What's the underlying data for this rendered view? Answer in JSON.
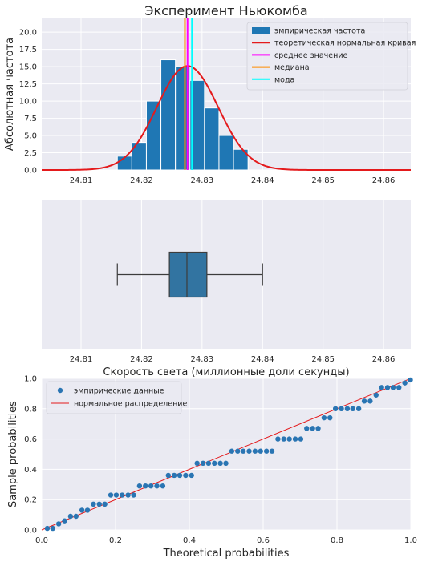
{
  "figure": {
    "title": "Эксперимент Ньюкомба"
  },
  "chart_data": [
    {
      "type": "bar",
      "subtype": "histogram",
      "title": "Эксперимент Ньюкомба",
      "ylabel": "Абсолютная частота",
      "xlabel": "",
      "xlim": [
        24.8035,
        24.8645
      ],
      "ylim": [
        0,
        22
      ],
      "xticks": [
        "24.81",
        "24.82",
        "24.83",
        "24.84",
        "24.85",
        "24.86"
      ],
      "yticks": [
        "0.0",
        "2.5",
        "5.0",
        "7.5",
        "10.0",
        "12.5",
        "15.0",
        "17.5",
        "20.0"
      ],
      "bin_edges": [
        24.816,
        24.8184,
        24.8208,
        24.8232,
        24.8256,
        24.828,
        24.8304,
        24.8328,
        24.8352,
        24.8376,
        24.84
      ],
      "values": [
        2,
        4,
        10,
        16,
        15,
        13,
        9,
        5,
        3,
        0
      ],
      "normal_curve": {
        "mean": 24.8276,
        "std": 0.00505,
        "peak": 15.1
      },
      "vlines": {
        "mean": 24.8276,
        "median": 24.8275,
        "mode": 24.828
      },
      "grid": true,
      "legend_position": "top-right",
      "legend": [
        {
          "label": "эмпирическая частота",
          "color": "#1f77b4",
          "kind": "patch"
        },
        {
          "label": "теоретическая нормальная кривая",
          "color": "#e41a1c",
          "kind": "line"
        },
        {
          "label": "среднее значение",
          "color": "#ff00ff",
          "kind": "line"
        },
        {
          "label": "медиана",
          "color": "#ff8c00",
          "kind": "line"
        },
        {
          "label": "мода",
          "color": "#00ffff",
          "kind": "line"
        }
      ]
    },
    {
      "type": "boxplot",
      "xlabel": "Скорость света (миллионные доли секунды)",
      "xlim": [
        24.8035,
        24.8645
      ],
      "xticks": [
        "24.81",
        "24.82",
        "24.83",
        "24.84",
        "24.85",
        "24.86"
      ],
      "whisker_low": 24.816,
      "q1": 24.8246,
      "median": 24.8275,
      "q3": 24.8308,
      "whisker_high": 24.84,
      "color": "#3274a1",
      "grid": true
    },
    {
      "type": "scatter",
      "subtype": "probability plot",
      "xlabel": "Theoretical probabilities",
      "ylabel": "Sample probabilities",
      "xlim": [
        0,
        1
      ],
      "ylim": [
        0,
        1
      ],
      "xticks": [
        "0.0",
        "0.2",
        "0.4",
        "0.6",
        "0.8",
        "1.0"
      ],
      "yticks": [
        "0.0",
        "0.2",
        "0.4",
        "0.6",
        "0.8",
        "1.0"
      ],
      "x": [
        0.015,
        0.03,
        0.046,
        0.062,
        0.078,
        0.093,
        0.109,
        0.124,
        0.14,
        0.156,
        0.171,
        0.187,
        0.202,
        0.218,
        0.234,
        0.249,
        0.265,
        0.281,
        0.296,
        0.312,
        0.328,
        0.343,
        0.359,
        0.374,
        0.39,
        0.406,
        0.421,
        0.437,
        0.452,
        0.468,
        0.484,
        0.499,
        0.515,
        0.531,
        0.546,
        0.562,
        0.578,
        0.593,
        0.609,
        0.624,
        0.64,
        0.656,
        0.671,
        0.687,
        0.702,
        0.718,
        0.734,
        0.749,
        0.765,
        0.781,
        0.796,
        0.812,
        0.828,
        0.843,
        0.859,
        0.874,
        0.89,
        0.906,
        0.921,
        0.937,
        0.952,
        0.968,
        0.984,
        0.999
      ],
      "y": [
        0.01,
        0.01,
        0.04,
        0.06,
        0.09,
        0.09,
        0.13,
        0.13,
        0.17,
        0.17,
        0.17,
        0.23,
        0.23,
        0.23,
        0.23,
        0.23,
        0.29,
        0.29,
        0.29,
        0.29,
        0.29,
        0.36,
        0.36,
        0.36,
        0.36,
        0.36,
        0.44,
        0.44,
        0.44,
        0.44,
        0.44,
        0.44,
        0.52,
        0.52,
        0.52,
        0.52,
        0.52,
        0.52,
        0.52,
        0.52,
        0.6,
        0.6,
        0.6,
        0.6,
        0.6,
        0.67,
        0.67,
        0.67,
        0.74,
        0.74,
        0.8,
        0.8,
        0.8,
        0.8,
        0.8,
        0.85,
        0.85,
        0.89,
        0.94,
        0.94,
        0.94,
        0.94,
        0.97,
        0.99
      ],
      "reference_line": {
        "from": [
          0,
          0
        ],
        "to": [
          1,
          1
        ],
        "color": "#e41a1c"
      },
      "grid": true,
      "legend_position": "top-left",
      "legend": [
        {
          "label": "эмпирические данные",
          "color": "#2a75b3",
          "kind": "marker"
        },
        {
          "label": "нормальное распределение",
          "color": "#e41a1c",
          "kind": "line"
        }
      ]
    }
  ]
}
